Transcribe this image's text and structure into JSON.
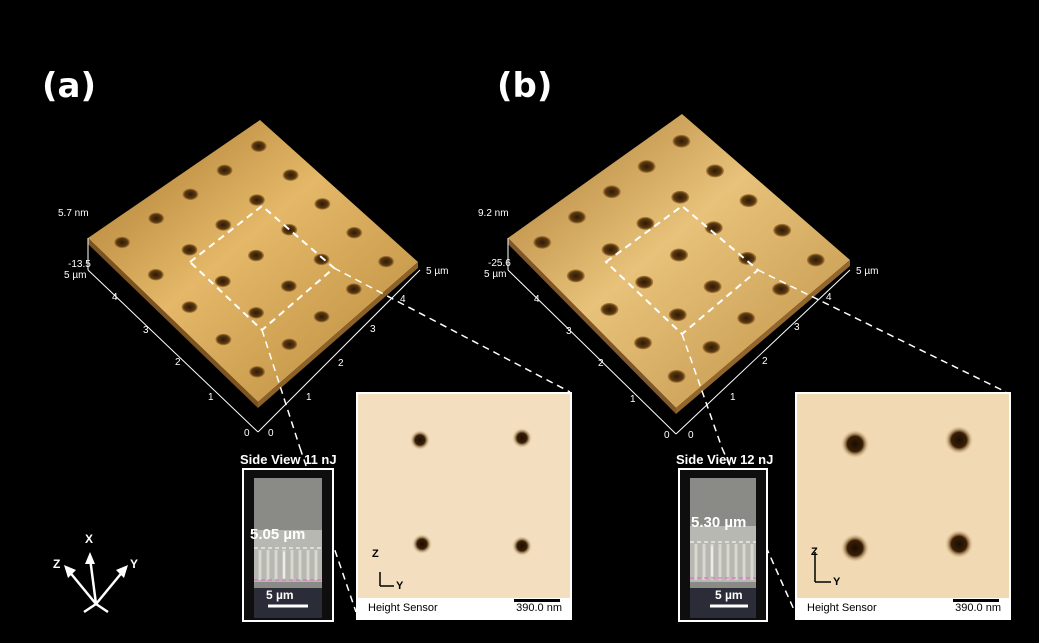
{
  "panels": [
    {
      "label": "(a)",
      "scale_top": "5.7 nm",
      "scale_low": "-13.5",
      "axis_left_end": "5 µm",
      "axis_right_end": "5 µm",
      "ticks_left": [
        "0",
        "1",
        "2",
        "3",
        "4"
      ],
      "ticks_right": [
        "0",
        "1",
        "2",
        "3",
        "4"
      ],
      "side_title": "Side View 11 nJ",
      "side_depth": "5.05 µm",
      "side_scale": "5 µm",
      "inset_axis_z": "Z",
      "inset_axis_y": "Y",
      "inset_sensor": "Height Sensor",
      "inset_scale": "390.0 nm",
      "colors": {
        "surface_light": "#e4b868",
        "surface_dark": "#a6752e",
        "pit": "#4a2c0c"
      }
    },
    {
      "label": "(b)",
      "scale_top": "9.2 nm",
      "scale_low": "-25.6",
      "axis_left_end": "5 µm",
      "axis_right_end": "5 µm",
      "ticks_left": [
        "0",
        "1",
        "2",
        "3",
        "4"
      ],
      "ticks_right": [
        "0",
        "1",
        "2",
        "3",
        "4"
      ],
      "side_title": "Side View 12 nJ",
      "side_depth": "5.30 µm",
      "side_scale": "5 µm",
      "inset_axis_z": "Z",
      "inset_axis_y": "Y",
      "inset_sensor": "Height Sensor",
      "inset_scale": "390.0 nm",
      "colors": {
        "surface_light": "#e8c27a",
        "surface_dark": "#ab7a33",
        "pit": "#4a2c0c"
      }
    }
  ],
  "axes_legend": {
    "x": "X",
    "y": "Y",
    "z": "Z"
  }
}
